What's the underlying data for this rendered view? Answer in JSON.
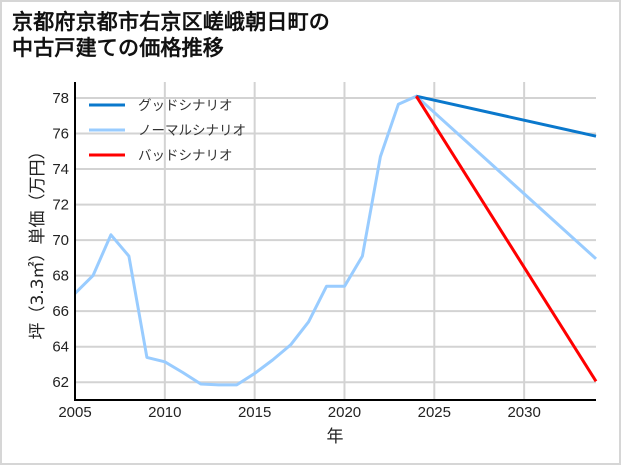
{
  "title": {
    "line1": "京都府京都市右京区嵯峨朝日町の",
    "line2": "中古戸建ての価格推移"
  },
  "chart_data": {
    "type": "line",
    "title": "京都府京都市右京区嵯峨朝日町の中古戸建ての価格推移",
    "xlabel": "年",
    "ylabel": "坪（3.3㎡）単価（万円）",
    "xlim": [
      2005,
      2034
    ],
    "ylim": [
      61.0,
      78.9
    ],
    "xticks": [
      2005,
      2010,
      2015,
      2020,
      2025,
      2030
    ],
    "yticks": [
      62,
      64,
      66,
      68,
      70,
      72,
      74,
      76,
      78
    ],
    "grid": true,
    "legend_position": "upper left",
    "series": [
      {
        "name": "グッドシナリオ",
        "color": "#0a78cc",
        "x": [
          2024,
          2034
        ],
        "values": [
          78.1,
          75.85
        ]
      },
      {
        "name": "ノーマルシナリオ",
        "color": "#99ccff",
        "x": [
          2005,
          2006,
          2007,
          2008,
          2009,
          2010,
          2011,
          2012,
          2013,
          2014,
          2015,
          2016,
          2017,
          2018,
          2019,
          2020,
          2021,
          2022,
          2023,
          2024,
          2034
        ],
        "values": [
          67.0,
          68.0,
          70.3,
          69.1,
          63.4,
          63.15,
          62.55,
          61.9,
          61.85,
          61.85,
          62.5,
          63.25,
          64.1,
          65.4,
          67.4,
          67.4,
          69.1,
          74.7,
          77.65,
          78.1,
          68.95
        ]
      },
      {
        "name": "バッドシナリオ",
        "color": "#ff0000",
        "x": [
          2024,
          2034
        ],
        "values": [
          78.1,
          62.05
        ]
      }
    ]
  }
}
